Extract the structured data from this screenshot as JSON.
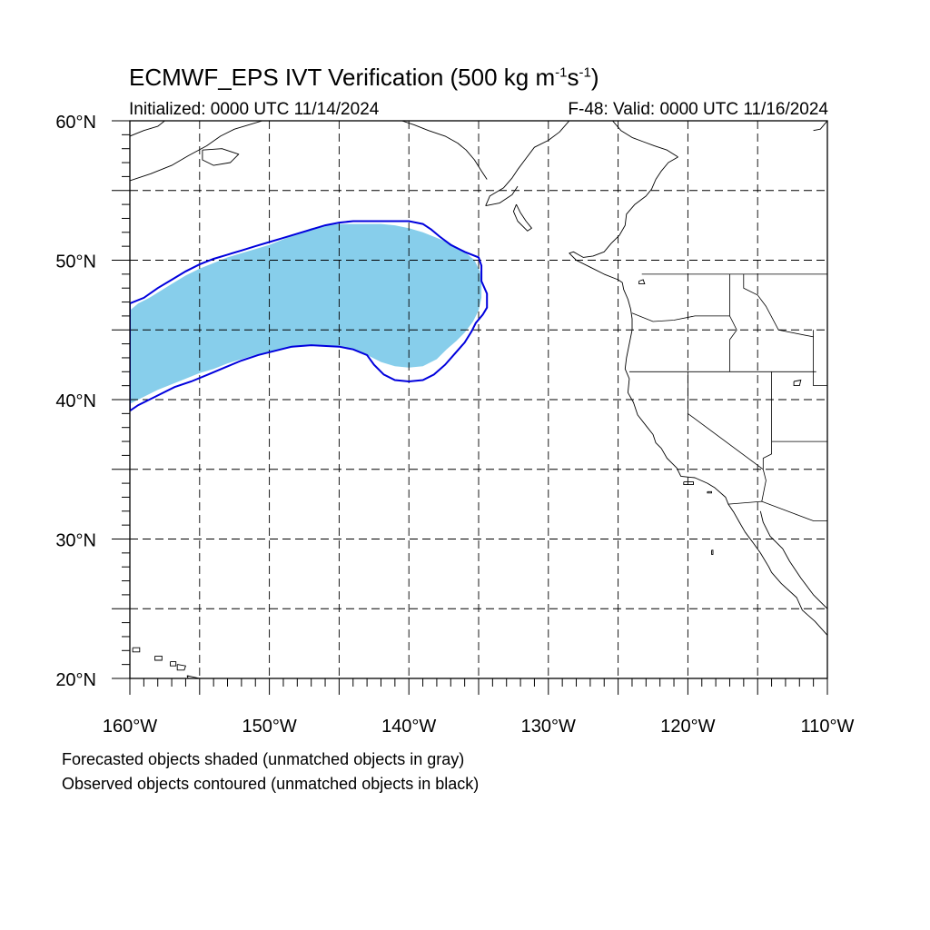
{
  "title": {
    "main": "ECMWF_EPS IVT Verification (500 kg m",
    "exp1": "-1",
    "mid": "s",
    "exp2": "-1",
    "end": ")"
  },
  "subtitle_left": "Initialized: 0000 UTC 11/14/2024",
  "subtitle_right": "F-48: Valid: 0000 UTC 11/16/2024",
  "captions": [
    "Forecasted objects shaded (unmatched objects in gray)",
    "Observed objects contoured (unmatched objects in black)"
  ],
  "map": {
    "lon_range": [
      -160,
      -110
    ],
    "lat_range": [
      20,
      60
    ],
    "lon_labels": [
      {
        "lon": -160,
        "text": "160°W"
      },
      {
        "lon": -150,
        "text": "150°W"
      },
      {
        "lon": -140,
        "text": "140°W"
      },
      {
        "lon": -130,
        "text": "130°W"
      },
      {
        "lon": -120,
        "text": "120°W"
      },
      {
        "lon": -110,
        "text": "110°W"
      }
    ],
    "lat_labels": [
      {
        "lat": 60,
        "text": "60°N"
      },
      {
        "lat": 50,
        "text": "50°N"
      },
      {
        "lat": 40,
        "text": "40°N"
      },
      {
        "lat": 30,
        "text": "30°N"
      },
      {
        "lat": 20,
        "text": "20°N"
      }
    ],
    "grid_lons": [
      -155,
      -150,
      -145,
      -140,
      -135,
      -130,
      -125,
      -120,
      -115
    ],
    "grid_lats": [
      55,
      50,
      45,
      40,
      35,
      30,
      25
    ],
    "forecast_color": "#87CEEB",
    "observed_color": "#0000DD",
    "coast_color": "#000000",
    "forecast_object": [
      [
        -160,
        46.4
      ],
      [
        -159.4,
        46.9
      ],
      [
        -158.6,
        47.3
      ],
      [
        -157.8,
        47.8
      ],
      [
        -157,
        48.3
      ],
      [
        -156,
        48.9
      ],
      [
        -155,
        49.4
      ],
      [
        -154,
        49.8
      ],
      [
        -153,
        50.2
      ],
      [
        -152,
        50.5
      ],
      [
        -151,
        50.8
      ],
      [
        -150,
        51.1
      ],
      [
        -149,
        51.5
      ],
      [
        -148,
        51.9
      ],
      [
        -147,
        52.3
      ],
      [
        -146,
        52.5
      ],
      [
        -145,
        52.6
      ],
      [
        -144,
        52.6
      ],
      [
        -143,
        52.6
      ],
      [
        -142,
        52.6
      ],
      [
        -141,
        52.5
      ],
      [
        -140,
        52.3
      ],
      [
        -139,
        52.0
      ],
      [
        -138,
        51.6
      ],
      [
        -137,
        51.2
      ],
      [
        -136,
        50.6
      ],
      [
        -135.3,
        50.0
      ],
      [
        -134.9,
        49.2
      ],
      [
        -134.8,
        48.3
      ],
      [
        -134.8,
        47.3
      ],
      [
        -135,
        46.4
      ],
      [
        -135.4,
        45.6
      ],
      [
        -136,
        44.8
      ],
      [
        -136.6,
        44.2
      ],
      [
        -137.3,
        43.6
      ],
      [
        -138.0,
        42.9
      ],
      [
        -139.0,
        42.4
      ],
      [
        -140.0,
        42.3
      ],
      [
        -141.0,
        42.4
      ],
      [
        -142.0,
        42.7
      ],
      [
        -143.0,
        43.2
      ],
      [
        -144.0,
        43.6
      ],
      [
        -145.0,
        43.8
      ],
      [
        -146.0,
        43.9
      ],
      [
        -147.0,
        43.9
      ],
      [
        -148.0,
        43.8
      ],
      [
        -149.0,
        43.6
      ],
      [
        -150.0,
        43.4
      ],
      [
        -151.0,
        43.2
      ],
      [
        -152.0,
        42.9
      ],
      [
        -153.0,
        42.6
      ],
      [
        -154.0,
        42.2
      ],
      [
        -155.0,
        41.9
      ],
      [
        -156.0,
        41.5
      ],
      [
        -157.0,
        41.1
      ],
      [
        -158.0,
        40.7
      ],
      [
        -159.0,
        40.2
      ],
      [
        -160,
        39.7
      ]
    ],
    "observed_object": [
      [
        -160,
        39.2
      ],
      [
        -159.4,
        39.6
      ],
      [
        -158.6,
        40.0
      ],
      [
        -157.8,
        40.4
      ],
      [
        -156.8,
        40.9
      ],
      [
        -155.6,
        41.3
      ],
      [
        -154.4,
        41.8
      ],
      [
        -153.2,
        42.3
      ],
      [
        -152.0,
        42.8
      ],
      [
        -150.8,
        43.2
      ],
      [
        -149.6,
        43.5
      ],
      [
        -148.4,
        43.8
      ],
      [
        -147.0,
        43.9
      ],
      [
        -145.0,
        43.8
      ],
      [
        -144.0,
        43.6
      ],
      [
        -143.0,
        43.2
      ],
      [
        -142.5,
        42.5
      ],
      [
        -141.8,
        41.8
      ],
      [
        -141.0,
        41.4
      ],
      [
        -140.0,
        41.3
      ],
      [
        -139.0,
        41.4
      ],
      [
        -138.2,
        41.8
      ],
      [
        -137.4,
        42.5
      ],
      [
        -136.7,
        43.3
      ],
      [
        -136.0,
        44.1
      ],
      [
        -135.5,
        44.9
      ],
      [
        -135.2,
        45.5
      ],
      [
        -134.7,
        46.1
      ],
      [
        -134.4,
        46.6
      ],
      [
        -134.4,
        47.6
      ],
      [
        -134.8,
        48.5
      ],
      [
        -134.8,
        49.6
      ],
      [
        -135.0,
        50.2
      ],
      [
        -136.0,
        50.6
      ],
      [
        -137.0,
        51.1
      ],
      [
        -137.8,
        51.7
      ],
      [
        -138.4,
        52.2
      ],
      [
        -139.0,
        52.6
      ],
      [
        -140.0,
        52.8
      ],
      [
        -141.0,
        52.8
      ],
      [
        -142.5,
        52.8
      ],
      [
        -144.0,
        52.8
      ],
      [
        -145.0,
        52.7
      ],
      [
        -146.0,
        52.5
      ],
      [
        -147.0,
        52.2
      ],
      [
        -148.0,
        51.9
      ],
      [
        -149.0,
        51.6
      ],
      [
        -150.0,
        51.3
      ],
      [
        -151.0,
        51.0
      ],
      [
        -152.0,
        50.7
      ],
      [
        -153.0,
        50.4
      ],
      [
        -154.0,
        50.1
      ],
      [
        -155.0,
        49.7
      ],
      [
        -156.0,
        49.2
      ],
      [
        -157.0,
        48.6
      ],
      [
        -158.0,
        48.0
      ],
      [
        -159.0,
        47.3
      ],
      [
        -160.0,
        46.9
      ]
    ],
    "coastlines": [
      [
        [
          -125.4,
          60
        ],
        [
          -124.8,
          59.3
        ],
        [
          -124.0,
          58.8
        ],
        [
          -123.2,
          58.5
        ],
        [
          -122.4,
          58.2
        ],
        [
          -121.5,
          57.9
        ],
        [
          -120.7,
          57.4
        ]
      ],
      [
        [
          -120.7,
          57.4
        ],
        [
          -121.4,
          57.0
        ],
        [
          -121.9,
          56.4
        ],
        [
          -122.3,
          55.8
        ],
        [
          -122.6,
          55.1
        ],
        [
          -123.0,
          54.6
        ],
        [
          -123.8,
          54.0
        ],
        [
          -124.4,
          53.3
        ],
        [
          -124.5,
          52.5
        ],
        [
          -124.9,
          51.8
        ],
        [
          -125.5,
          51.2
        ],
        [
          -126.0,
          50.6
        ],
        [
          -126.8,
          50.3
        ],
        [
          -127.5,
          50.2
        ],
        [
          -128.2,
          50.6
        ],
        [
          -128.5,
          50.5
        ],
        [
          -128.0,
          50.0
        ],
        [
          -127.0,
          49.5
        ],
        [
          -126.0,
          49.0
        ],
        [
          -125.0,
          48.6
        ],
        [
          -124.7,
          48.4
        ],
        [
          -124.6,
          47.9
        ],
        [
          -124.3,
          47.2
        ],
        [
          -124.1,
          46.5
        ],
        [
          -124.0,
          45.8
        ],
        [
          -124.0,
          45.0
        ],
        [
          -124.2,
          44.0
        ],
        [
          -124.4,
          43.0
        ],
        [
          -124.5,
          42.2
        ],
        [
          -124.2,
          41.5
        ],
        [
          -124.3,
          40.5
        ],
        [
          -123.9,
          39.8
        ],
        [
          -123.6,
          38.9
        ],
        [
          -122.9,
          38.0
        ],
        [
          -122.5,
          37.5
        ],
        [
          -122.3,
          36.9
        ],
        [
          -121.9,
          36.5
        ],
        [
          -121.5,
          35.8
        ],
        [
          -120.8,
          35.1
        ],
        [
          -120.5,
          34.5
        ],
        [
          -119.5,
          34.4
        ],
        [
          -118.6,
          34.0
        ],
        [
          -118.1,
          33.7
        ],
        [
          -117.3,
          33.0
        ],
        [
          -117.1,
          32.5
        ],
        [
          -116.7,
          31.9
        ],
        [
          -116.3,
          31.2
        ],
        [
          -115.9,
          30.5
        ],
        [
          -115.3,
          29.7
        ],
        [
          -114.8,
          29.0
        ],
        [
          -114.2,
          28.0
        ],
        [
          -114.0,
          27.6
        ],
        [
          -113.3,
          26.8
        ],
        [
          -112.2,
          25.8
        ],
        [
          -111.8,
          24.9
        ],
        [
          -110.9,
          24.1
        ],
        [
          -110.0,
          23.1
        ]
      ],
      [
        [
          -114.8,
          32.0
        ],
        [
          -114.6,
          31.2
        ],
        [
          -114.1,
          30.2
        ],
        [
          -113.2,
          29.3
        ],
        [
          -112.7,
          28.4
        ],
        [
          -111.9,
          27.2
        ],
        [
          -111.0,
          26.0
        ],
        [
          -110.0,
          25.0
        ]
      ],
      [
        [
          -128.5,
          60
        ],
        [
          -129.2,
          59.2
        ],
        [
          -130.0,
          58.6
        ],
        [
          -131.0,
          58.1
        ],
        [
          -131.6,
          57.3
        ],
        [
          -132.2,
          56.5
        ],
        [
          -132.6,
          55.9
        ],
        [
          -133.2,
          55.2
        ],
        [
          -134.2,
          54.6
        ],
        [
          -134.5,
          53.9
        ]
      ],
      [
        [
          -134.5,
          53.9
        ],
        [
          -133.5,
          54.1
        ],
        [
          -132.6,
          54.7
        ],
        [
          -132.2,
          55.3
        ]
      ],
      [
        [
          -132.3,
          54.0
        ],
        [
          -132.0,
          53.4
        ],
        [
          -131.6,
          52.8
        ],
        [
          -131.2,
          52.3
        ],
        [
          -131.5,
          52.1
        ],
        [
          -132.2,
          52.8
        ],
        [
          -132.5,
          53.5
        ],
        [
          -132.3,
          54.0
        ]
      ],
      [
        [
          -140.5,
          60
        ],
        [
          -139.6,
          59.7
        ],
        [
          -138.6,
          59.3
        ],
        [
          -137.4,
          58.9
        ],
        [
          -136.5,
          58.4
        ],
        [
          -135.9,
          57.9
        ],
        [
          -135.3,
          57.2
        ],
        [
          -134.8,
          56.4
        ],
        [
          -134.4,
          55.8
        ]
      ],
      [
        [
          -160.0,
          55.7
        ],
        [
          -158.5,
          56.2
        ],
        [
          -157.0,
          56.8
        ],
        [
          -155.8,
          57.5
        ],
        [
          -154.5,
          58.2
        ],
        [
          -153.5,
          58.9
        ],
        [
          -152.5,
          59.4
        ],
        [
          -151.5,
          59.7
        ],
        [
          -150.5,
          60
        ]
      ],
      [
        [
          -160.0,
          58.9
        ],
        [
          -159.0,
          59.3
        ],
        [
          -158.0,
          59.6
        ],
        [
          -157.5,
          60
        ]
      ],
      [
        [
          -154.8,
          57.9
        ],
        [
          -153.4,
          58.0
        ],
        [
          -152.2,
          57.6
        ],
        [
          -152.8,
          57.0
        ],
        [
          -154.0,
          56.8
        ],
        [
          -154.8,
          57.2
        ],
        [
          -154.8,
          57.9
        ]
      ],
      [
        [
          -110.0,
          60
        ],
        [
          -110.5,
          59.4
        ],
        [
          -111.0,
          59.3
        ]
      ]
    ],
    "islands": [
      [
        [
          -159.8,
          22.2
        ],
        [
          -159.3,
          22.2
        ],
        [
          -159.3,
          21.9
        ],
        [
          -159.8,
          21.9
        ],
        [
          -159.8,
          22.2
        ]
      ],
      [
        [
          -158.2,
          21.6
        ],
        [
          -157.7,
          21.6
        ],
        [
          -157.7,
          21.3
        ],
        [
          -158.2,
          21.3
        ],
        [
          -158.2,
          21.6
        ]
      ],
      [
        [
          -157.1,
          21.2
        ],
        [
          -156.7,
          21.2
        ],
        [
          -156.7,
          20.9
        ],
        [
          -157.1,
          20.9
        ],
        [
          -157.1,
          21.2
        ]
      ],
      [
        [
          -156.6,
          21.0
        ],
        [
          -156.0,
          20.9
        ],
        [
          -156.1,
          20.6
        ],
        [
          -156.6,
          20.6
        ],
        [
          -156.6,
          21.0
        ]
      ],
      [
        [
          -155.9,
          20.2
        ],
        [
          -155.0,
          20.0
        ],
        [
          -154.8,
          19.5
        ],
        [
          -155.6,
          19.4
        ],
        [
          -155.9,
          20.2
        ]
      ],
      [
        [
          -120.3,
          34.1
        ],
        [
          -119.6,
          34.1
        ],
        [
          -119.6,
          33.9
        ],
        [
          -120.3,
          33.9
        ],
        [
          -120.3,
          34.1
        ]
      ],
      [
        [
          -118.6,
          33.4
        ],
        [
          -118.3,
          33.4
        ],
        [
          -118.3,
          33.3
        ],
        [
          -118.6,
          33.3
        ],
        [
          -118.6,
          33.4
        ]
      ],
      [
        [
          -118.3,
          29.2
        ],
        [
          -118.2,
          29.2
        ],
        [
          -118.2,
          28.9
        ],
        [
          -118.3,
          28.9
        ],
        [
          -118.3,
          29.2
        ]
      ],
      [
        [
          -112.4,
          41.3
        ],
        [
          -111.9,
          41.4
        ],
        [
          -112.0,
          41.0
        ],
        [
          -112.4,
          41.0
        ],
        [
          -112.4,
          41.3
        ]
      ],
      [
        [
          -123.5,
          48.5
        ],
        [
          -123.2,
          48.6
        ],
        [
          -123.1,
          48.3
        ],
        [
          -123.5,
          48.3
        ],
        [
          -123.5,
          48.5
        ]
      ]
    ],
    "borders": [
      [
        [
          -123.3,
          49.0
        ],
        [
          -110.0,
          49.0
        ]
      ],
      [
        [
          -124.2,
          42.0
        ],
        [
          -110.8,
          42.0
        ]
      ],
      [
        [
          -120.0,
          42.0
        ],
        [
          -120.0,
          39.0
        ],
        [
          -114.6,
          35.0
        ]
      ],
      [
        [
          -124.0,
          46.2
        ],
        [
          -122.5,
          45.6
        ],
        [
          -121.0,
          45.7
        ],
        [
          -119.5,
          46.0
        ],
        [
          -117.0,
          46.0
        ]
      ],
      [
        [
          -117.0,
          49.0
        ],
        [
          -117.0,
          46.0
        ],
        [
          -116.8,
          45.6
        ],
        [
          -116.5,
          45.0
        ],
        [
          -117.0,
          44.3
        ],
        [
          -117.0,
          42.0
        ]
      ],
      [
        [
          -116.0,
          49.0
        ],
        [
          -116.0,
          48.0
        ],
        [
          -115.0,
          47.5
        ],
        [
          -114.4,
          46.7
        ],
        [
          -113.5,
          45.0
        ],
        [
          -111.0,
          44.5
        ]
      ],
      [
        [
          -111.0,
          45.0
        ],
        [
          -111.0,
          41.0
        ],
        [
          -110.0,
          41.0
        ]
      ],
      [
        [
          -114.0,
          42.0
        ],
        [
          -114.0,
          36.1
        ],
        [
          -114.6,
          35.8
        ],
        [
          -114.6,
          35.0
        ]
      ],
      [
        [
          -114.0,
          37.0
        ],
        [
          -110.0,
          37.0
        ]
      ],
      [
        [
          -117.1,
          32.5
        ],
        [
          -114.7,
          32.7
        ],
        [
          -111.0,
          31.3
        ],
        [
          -110.0,
          31.3
        ]
      ],
      [
        [
          -114.6,
          35.0
        ],
        [
          -114.4,
          34.2
        ],
        [
          -114.7,
          32.7
        ]
      ]
    ]
  }
}
